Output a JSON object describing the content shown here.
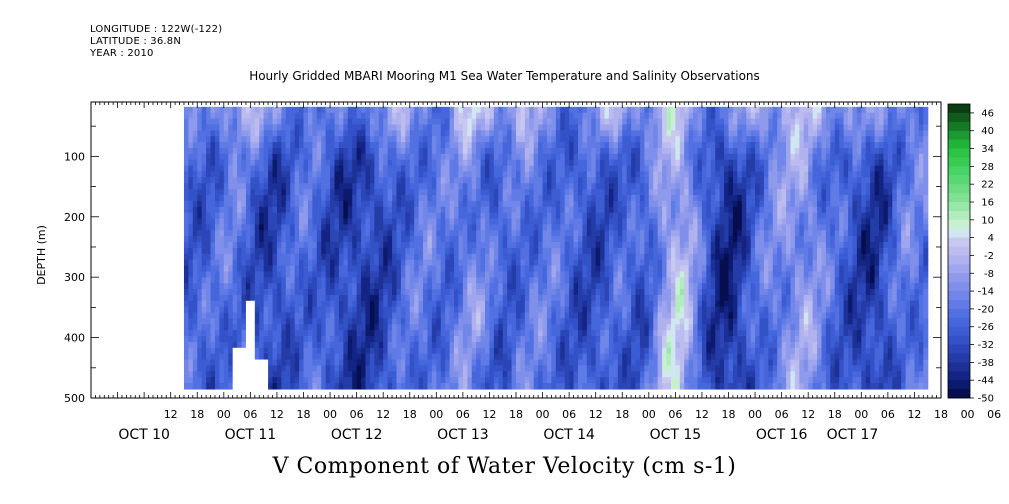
{
  "header": {
    "longitude": "LONGITUDE : 122W(-122)",
    "latitude": "LATITUDE : 36.8N",
    "year": "YEAR : 2010"
  },
  "chart_data": {
    "type": "heatmap",
    "title": "Hourly Gridded MBARI Mooring M1 Sea Water Temperature and Salinity Observations",
    "xlabel": "V Component of Water Velocity (cm s-1)",
    "ylabel": "DEPTH (m)",
    "x_time_range_hours": [
      -6,
      186
    ],
    "x_time_origin": "OCT 10 00",
    "data_time_range_hours": [
      15,
      183
    ],
    "ylim": [
      500,
      10
    ],
    "data_depth_range": [
      18,
      485
    ],
    "y_ticks": [
      100,
      200,
      300,
      400,
      500
    ],
    "hour_tick_labels": [
      "12",
      "18",
      "00",
      "06",
      "12",
      "18",
      "00",
      "06",
      "12",
      "18",
      "00",
      "06",
      "12",
      "18",
      "00",
      "06",
      "12",
      "18",
      "00",
      "06",
      "12",
      "18",
      "00",
      "06",
      "12",
      "18",
      "00",
      "06",
      "12",
      "18",
      "00",
      "06"
    ],
    "day_labels": [
      {
        "label": "OCT 10",
        "hour": 6
      },
      {
        "label": "OCT 11",
        "hour": 30
      },
      {
        "label": "OCT 12",
        "hour": 54
      },
      {
        "label": "OCT 13",
        "hour": 78
      },
      {
        "label": "OCT 14",
        "hour": 102
      },
      {
        "label": "OCT 15",
        "hour": 126
      },
      {
        "label": "OCT 16",
        "hour": 150
      },
      {
        "label": "OCT 17",
        "hour": 166
      }
    ],
    "colorbar": {
      "labels": [
        "46",
        "40",
        "34",
        "28",
        "22",
        "16",
        "10",
        "4",
        "-2",
        "-8",
        "-14",
        "-20",
        "-26",
        "-32",
        "-38",
        "-44",
        "-50"
      ],
      "levels": [
        46,
        43,
        40,
        37,
        34,
        31,
        28,
        25,
        22,
        19,
        16,
        13,
        10,
        7,
        4,
        1,
        -2,
        -5,
        -8,
        -11,
        -14,
        -17,
        -20,
        -23,
        -26,
        -29,
        -32,
        -35,
        -38,
        -41,
        -44,
        -47,
        -50
      ],
      "colors": [
        "#0b3d14",
        "#105a1c",
        "#157a26",
        "#1a9a30",
        "#22b43a",
        "#2cc447",
        "#38cc55",
        "#48d464",
        "#58d874",
        "#6cdc84",
        "#80e094",
        "#98e6a8",
        "#b2ecbe",
        "#c8f0d0",
        "#d0e6f0",
        "#c8c8f0",
        "#bcbcf0",
        "#b0b2ee",
        "#a0a6ee",
        "#909aec",
        "#8090ea",
        "#7086e8",
        "#607ae6",
        "#5270e2",
        "#4666dc",
        "#3c5cd4",
        "#3452c8",
        "#2c46b8",
        "#243ca8",
        "#1c3096",
        "#142484",
        "#0c1a6e",
        "#060e50"
      ]
    },
    "cell_values_note": "",
    "grid": false
  }
}
